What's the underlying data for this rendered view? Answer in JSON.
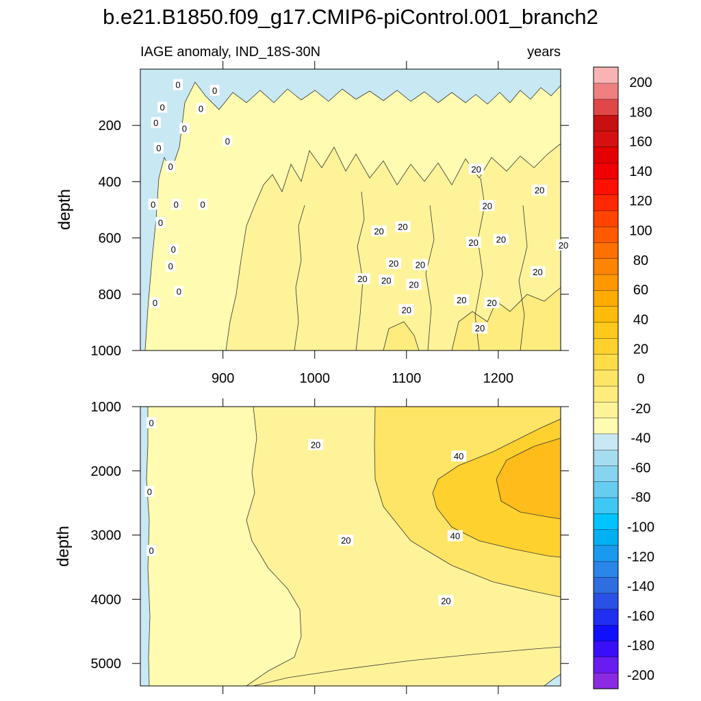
{
  "chart_data": {
    "type": "contour",
    "title": "b.e21.B1850.f09_g17.CMIP6-piControl.001_branch2",
    "left_subtitle": "IAGE anomaly, IND_18S-30N",
    "right_subtitle": "years",
    "xlabel": "",
    "ylabel": "depth",
    "xlim": [
      810,
      1268
    ],
    "x_ticks": [
      900,
      1000,
      1100,
      1200
    ],
    "x_tick_labels": [
      "900",
      "1000",
      "1100",
      "1200"
    ],
    "colorbar": {
      "levels": [
        -200,
        -180,
        -160,
        -140,
        -120,
        -100,
        -80,
        -60,
        -40,
        -20,
        0,
        20,
        40,
        60,
        80,
        100,
        120,
        140,
        160,
        180,
        200
      ],
      "tick_labels": [
        "-200",
        "-180",
        "-160",
        "-140",
        "-120",
        "-100",
        "-80",
        "-60",
        "-40",
        "-20",
        "0",
        "20",
        "40",
        "60",
        "80",
        "100",
        "120",
        "140",
        "160",
        "180",
        "200"
      ],
      "colors": [
        "#8a2be2",
        "#6a1bf0",
        "#3a0ff8",
        "#1010ff",
        "#2030f0",
        "#2a50e6",
        "#2e6ee0",
        "#2a86e8",
        "#1a9aee",
        "#00b0f0",
        "#00c4ff",
        "#40c8f4",
        "#66cdf0",
        "#86d4ef",
        "#a6dcf0",
        "#c8e8f4",
        "#fffbb0",
        "#fff39a",
        "#ffec7e",
        "#ffe566",
        "#ffdc48",
        "#ffd12e",
        "#ffc81c",
        "#ffbc0c",
        "#ffac00",
        "#ff9800",
        "#ff8400",
        "#ff7000",
        "#ff5a00",
        "#ff4400",
        "#ff2800",
        "#ff1000",
        "#f00000",
        "#e40000",
        "#d61010",
        "#c81010",
        "#e04848",
        "#ee8080",
        "#f8b4b4"
      ]
    },
    "panels": [
      {
        "name": "upper",
        "depth_range": [
          0,
          1000
        ],
        "y_ticks": [
          200,
          400,
          600,
          800,
          1000
        ],
        "y_tick_labels": [
          "200",
          "400",
          "600",
          "800",
          "1000"
        ],
        "contour_labels": [
          {
            "text": "0",
            "year": 851,
            "depth": 55
          },
          {
            "text": "0",
            "year": 891,
            "depth": 75
          },
          {
            "text": "0",
            "year": 834,
            "depth": 135
          },
          {
            "text": "0",
            "year": 876,
            "depth": 140
          },
          {
            "text": "0",
            "year": 827,
            "depth": 190
          },
          {
            "text": "0",
            "year": 858,
            "depth": 210
          },
          {
            "text": "0",
            "year": 905,
            "depth": 255
          },
          {
            "text": "0",
            "year": 830,
            "depth": 280
          },
          {
            "text": "0",
            "year": 843,
            "depth": 345
          },
          {
            "text": "0",
            "year": 824,
            "depth": 480
          },
          {
            "text": "0",
            "year": 849,
            "depth": 480
          },
          {
            "text": "0",
            "year": 878,
            "depth": 480
          },
          {
            "text": "0",
            "year": 832,
            "depth": 545
          },
          {
            "text": "0",
            "year": 846,
            "depth": 640
          },
          {
            "text": "0",
            "year": 843,
            "depth": 700
          },
          {
            "text": "0",
            "year": 852,
            "depth": 790
          },
          {
            "text": "0",
            "year": 826,
            "depth": 830
          },
          {
            "text": "20",
            "year": 1176,
            "depth": 355
          },
          {
            "text": "20",
            "year": 1245,
            "depth": 430
          },
          {
            "text": "20",
            "year": 1188,
            "depth": 485
          },
          {
            "text": "20",
            "year": 1096,
            "depth": 560
          },
          {
            "text": "20",
            "year": 1070,
            "depth": 575
          },
          {
            "text": "20",
            "year": 1173,
            "depth": 615
          },
          {
            "text": "20",
            "year": 1203,
            "depth": 605
          },
          {
            "text": "20",
            "year": 1271,
            "depth": 625
          },
          {
            "text": "20",
            "year": 1086,
            "depth": 690
          },
          {
            "text": "20",
            "year": 1115,
            "depth": 695
          },
          {
            "text": "20",
            "year": 1243,
            "depth": 720
          },
          {
            "text": "20",
            "year": 1052,
            "depth": 745
          },
          {
            "text": "20",
            "year": 1078,
            "depth": 750
          },
          {
            "text": "20",
            "year": 1108,
            "depth": 765
          },
          {
            "text": "20",
            "year": 1160,
            "depth": 820
          },
          {
            "text": "20",
            "year": 1193,
            "depth": 830
          },
          {
            "text": "20",
            "year": 1100,
            "depth": 855
          },
          {
            "text": "20",
            "year": 1180,
            "depth": 920
          }
        ]
      },
      {
        "name": "lower",
        "depth_range": [
          1000,
          5350
        ],
        "y_ticks": [
          1000,
          2000,
          3000,
          4000,
          5000
        ],
        "y_tick_labels": [
          "1000",
          "2000",
          "3000",
          "4000",
          "5000"
        ],
        "contour_labels": [
          {
            "text": "0",
            "year": 822,
            "depth": 1250
          },
          {
            "text": "0",
            "year": 820,
            "depth": 2320
          },
          {
            "text": "0",
            "year": 822,
            "depth": 3240
          },
          {
            "text": "20",
            "year": 1001,
            "depth": 1590
          },
          {
            "text": "40",
            "year": 1157,
            "depth": 1770
          },
          {
            "text": "20",
            "year": 1034,
            "depth": 3080
          },
          {
            "text": "40",
            "year": 1153,
            "depth": 3010
          },
          {
            "text": "20",
            "year": 1143,
            "depth": 4020
          }
        ]
      }
    ]
  }
}
